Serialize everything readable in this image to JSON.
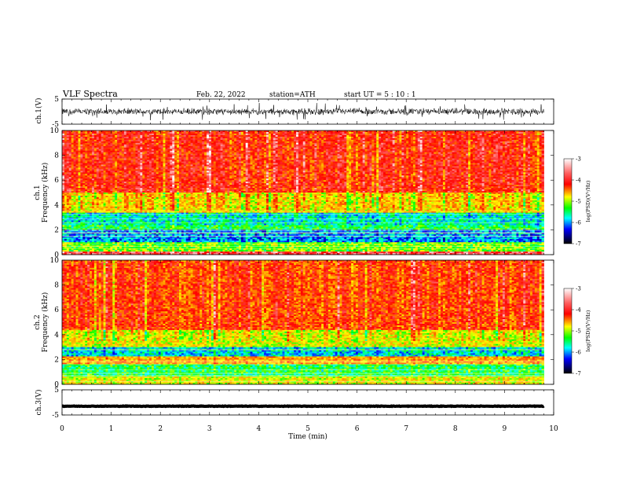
{
  "header": {
    "title": "VLF Spectra",
    "date": "Feb. 22, 2022",
    "station": "station=ATH",
    "start_ut": "start UT =   5 : 10 : 1"
  },
  "colorbar": {
    "label": "log(PSD)(V²/Hz)",
    "ticks": [
      "-3",
      "-4",
      "-5",
      "-6",
      "-7"
    ],
    "colors": [
      "#ffffff",
      "#ff0000",
      "#ffff00",
      "#00ff00",
      "#00ffff",
      "#0000ff",
      "#000000"
    ]
  },
  "chart_data": [
    {
      "type": "line",
      "name": "ch1-waveform",
      "ylabel": "ch.1(V)",
      "xlim": [
        0,
        10
      ],
      "ylim": [
        -5,
        5
      ],
      "yticks": [
        "5",
        "-5"
      ],
      "data_extent_min": 9.8,
      "description_values": {
        "baseline": 0,
        "typical_amplitude": 1.5,
        "spike_amplitude": 3.5
      }
    },
    {
      "type": "heatmap",
      "name": "ch1-spectrogram",
      "ylabel": "ch.1\nFrequency (kHz)",
      "ylabel_line1": "ch.1",
      "ylabel_line2": "Frequency (kHz)",
      "xlim": [
        0,
        10
      ],
      "ylim": [
        0,
        10
      ],
      "yticks": [
        "0",
        "2",
        "4",
        "6",
        "8",
        "10"
      ],
      "bands": [
        {
          "from_khz": 0.0,
          "to_khz": 0.3,
          "level": -3.6
        },
        {
          "from_khz": 0.3,
          "to_khz": 1.0,
          "level": -5.3
        },
        {
          "from_khz": 1.0,
          "to_khz": 2.0,
          "level": -6.2
        },
        {
          "from_khz": 2.0,
          "to_khz": 2.4,
          "level": -5.6
        },
        {
          "from_khz": 2.4,
          "to_khz": 3.4,
          "level": -5.9
        },
        {
          "from_khz": 3.4,
          "to_khz": 5.0,
          "level": -4.8
        },
        {
          "from_khz": 5.0,
          "to_khz": 10.0,
          "level": -4.0
        }
      ]
    },
    {
      "type": "heatmap",
      "name": "ch2-spectrogram",
      "ylabel_line1": "ch.2",
      "ylabel_line2": "Frequency (kHz)",
      "xlim": [
        0,
        10
      ],
      "ylim": [
        0,
        10
      ],
      "yticks": [
        "0",
        "2",
        "4",
        "6",
        "8",
        "10"
      ],
      "bands": [
        {
          "from_khz": 0.0,
          "to_khz": 0.6,
          "level": -5.0
        },
        {
          "from_khz": 0.6,
          "to_khz": 1.6,
          "level": -5.6
        },
        {
          "from_khz": 1.6,
          "to_khz": 2.2,
          "level": -4.6
        },
        {
          "from_khz": 2.2,
          "to_khz": 3.0,
          "level": -6.0
        },
        {
          "from_khz": 3.0,
          "to_khz": 4.4,
          "level": -5.0
        },
        {
          "from_khz": 4.4,
          "to_khz": 10.0,
          "level": -4.2
        }
      ]
    },
    {
      "type": "line",
      "name": "ch3-waveform",
      "ylabel": "ch.3(V)",
      "xlim": [
        0,
        10
      ],
      "ylim": [
        -5,
        5
      ],
      "yticks": [
        "5",
        "-5"
      ],
      "data_extent_min": 9.8,
      "description_values": {
        "baseline": -1.5,
        "typical_amplitude": 0.1
      }
    }
  ],
  "xaxis": {
    "label": "Time (min)",
    "ticks": [
      "0",
      "1",
      "2",
      "3",
      "4",
      "5",
      "6",
      "7",
      "8",
      "9",
      "10"
    ]
  }
}
